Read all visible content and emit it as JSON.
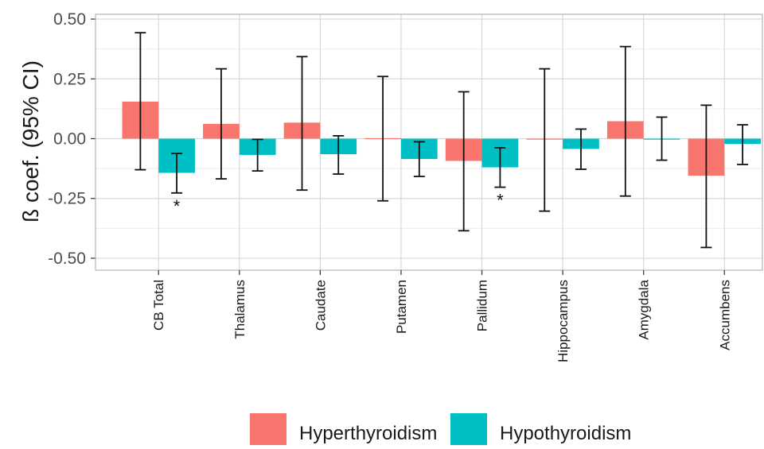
{
  "chart_data": {
    "type": "bar",
    "title": "",
    "xlabel": "",
    "ylabel": "ß coef. (95% CI)",
    "ylim": [
      -0.55,
      0.52
    ],
    "yticks": [
      "0.50",
      "0.25",
      "0.00",
      "-0.25",
      "-0.50"
    ],
    "ytick_values": [
      0.5,
      0.25,
      0.0,
      -0.25,
      -0.5
    ],
    "grid": true,
    "legend_position": "bottom",
    "categories": [
      "CB Total",
      "Thalamus",
      "Caudate",
      "Putamen",
      "Pallidum",
      "Hippocampus",
      "Amygdala",
      "Accumbens"
    ],
    "series": [
      {
        "name": "Hyperthyroidism",
        "color": "#F8766D",
        "values": [
          0.155,
          0.062,
          0.067,
          0.002,
          -0.093,
          -0.004,
          0.073,
          -0.155
        ],
        "ci_low": [
          -0.13,
          -0.168,
          -0.215,
          -0.26,
          -0.385,
          -0.303,
          -0.24,
          -0.455
        ],
        "ci_high": [
          0.443,
          0.292,
          0.343,
          0.26,
          0.196,
          0.292,
          0.385,
          0.14
        ],
        "significance": [
          "",
          "",
          "",
          "",
          "",
          "",
          "",
          ""
        ]
      },
      {
        "name": "Hypothyroidism",
        "color": "#00BFC4",
        "values": [
          -0.143,
          -0.068,
          -0.065,
          -0.085,
          -0.12,
          -0.043,
          -0.002,
          -0.022
        ],
        "ci_low": [
          -0.227,
          -0.135,
          -0.148,
          -0.158,
          -0.203,
          -0.128,
          -0.09,
          -0.108
        ],
        "ci_high": [
          -0.062,
          -0.003,
          0.012,
          -0.013,
          -0.038,
          0.04,
          0.09,
          0.058
        ],
        "significance": [
          "*",
          "",
          "",
          "",
          "*",
          "",
          "",
          ""
        ]
      }
    ]
  }
}
